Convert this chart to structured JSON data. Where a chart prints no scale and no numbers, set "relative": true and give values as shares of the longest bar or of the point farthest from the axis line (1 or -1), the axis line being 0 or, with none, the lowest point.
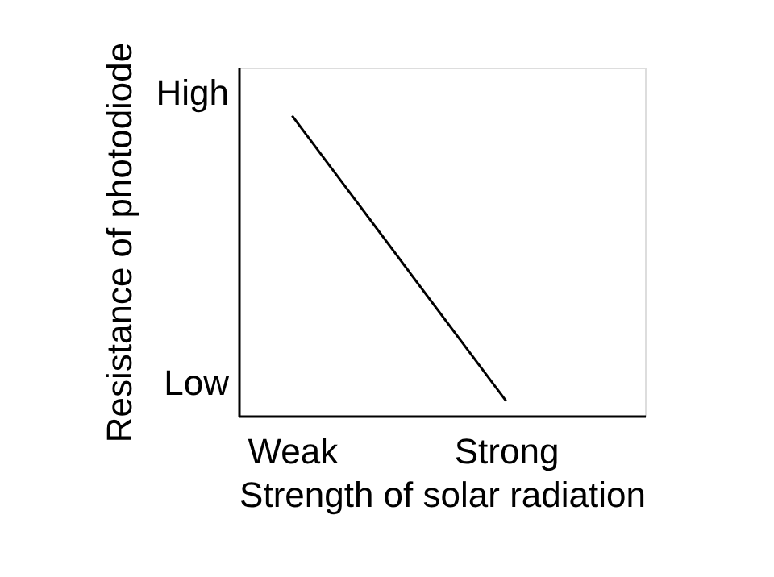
{
  "chart_data": {
    "type": "line",
    "relative": true,
    "xlabel": "Strength of solar radiation",
    "ylabel": "Resistance of photodiode",
    "categories": [
      "Weak",
      "Strong"
    ],
    "series": [
      {
        "color": "#000000",
        "values": [
          1,
          0.05
        ]
      }
    ],
    "annotations": [
      "High",
      "Low"
    ],
    "grid": false,
    "legend": false,
    "marker": "none",
    "line_style": "solid"
  }
}
